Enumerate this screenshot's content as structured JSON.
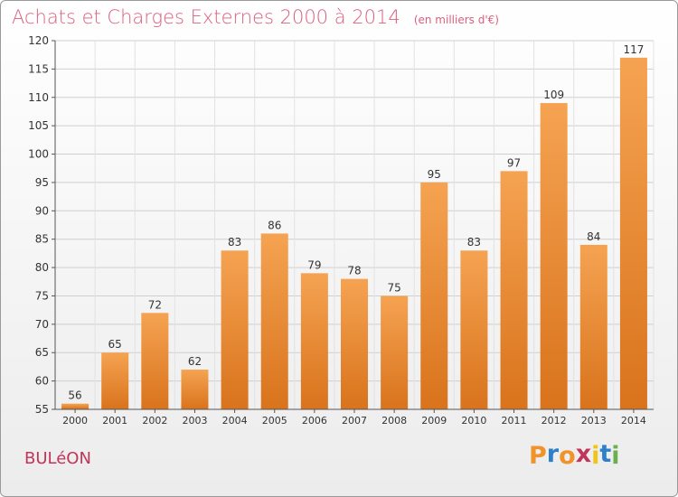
{
  "header": {
    "title": "Achats et Charges Externes 2000 à 2014",
    "subtitle": "(en milliers d'€)"
  },
  "footer": {
    "place": "BULéON",
    "brand": "Proxiti"
  },
  "colors": {
    "bar_light": "#f5a352",
    "bar_dark": "#d9731c",
    "title": "#d9607e",
    "place": "#c1355a",
    "brand_letters": [
      "#f0932b",
      "#2f80c8",
      "#f0932b",
      "#c1355a",
      "#f0c419",
      "#2f80c8",
      "#6ab04c"
    ]
  },
  "chart_data": {
    "type": "bar",
    "categories": [
      "2000",
      "2001",
      "2002",
      "2003",
      "2004",
      "2005",
      "2006",
      "2007",
      "2008",
      "2009",
      "2010",
      "2011",
      "2012",
      "2013",
      "2014"
    ],
    "values": [
      56,
      65,
      72,
      62,
      83,
      86,
      79,
      78,
      75,
      95,
      83,
      97,
      109,
      84,
      117
    ],
    "ylim": [
      55,
      120
    ],
    "yticks": [
      55,
      60,
      65,
      70,
      75,
      80,
      85,
      90,
      95,
      100,
      105,
      110,
      115,
      120
    ],
    "grid": true,
    "data_labels": true
  }
}
